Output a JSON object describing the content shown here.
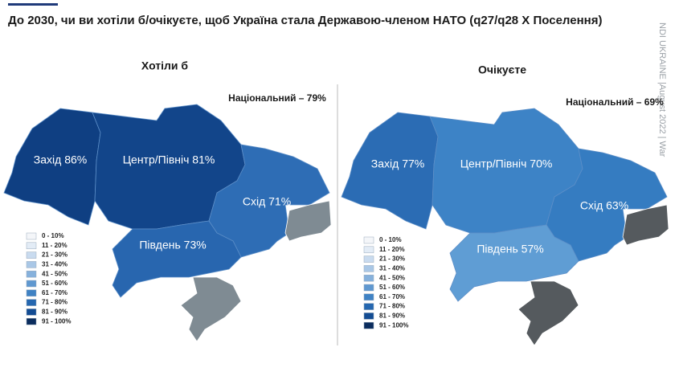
{
  "title": "До 2030, чи ви хотіли б/очікуєте, щоб Україна стала Державою-членом НАТО (q27/q28 X Поселення)",
  "side_note": "NDI UKRAINE |August 2022 | War",
  "maps": [
    {
      "title": "Хотіли б",
      "national": "Національний – 79%",
      "occupied_color": "#7f8b93",
      "regions": [
        {
          "label": "Захід 86%",
          "color": "#0f3f82"
        },
        {
          "label": "Центр/Північ 81%",
          "color": "#12458a"
        },
        {
          "label": "Схід 71%",
          "color": "#2e6db5"
        },
        {
          "label": "Південь 73%",
          "color": "#2866af"
        }
      ]
    },
    {
      "title": "Очікуєте",
      "national": "Національний – 69%",
      "occupied_color": "#555a5e",
      "regions": [
        {
          "label": "Захід 77%",
          "color": "#2b6cb4"
        },
        {
          "label": "Центр/Північ 70%",
          "color": "#3d83c6"
        },
        {
          "label": "Схід 63%",
          "color": "#357cc1"
        },
        {
          "label": "Південь 57%",
          "color": "#5f9dd4"
        }
      ]
    }
  ],
  "legend": [
    {
      "label": "0 - 10%",
      "color": "#f4f6f9"
    },
    {
      "label": "11 - 20%",
      "color": "#e3ecf6"
    },
    {
      "label": "21 - 30%",
      "color": "#c9dbef"
    },
    {
      "label": "31 - 40%",
      "color": "#a9c7e6"
    },
    {
      "label": "41 - 50%",
      "color": "#86b1dc"
    },
    {
      "label": "51 - 60%",
      "color": "#5f98d0"
    },
    {
      "label": "61 - 70%",
      "color": "#3f82c4"
    },
    {
      "label": "71 - 80%",
      "color": "#2567b0"
    },
    {
      "label": "81 - 90%",
      "color": "#134c93"
    },
    {
      "label": "91 - 100%",
      "color": "#0b2d5e"
    }
  ]
}
